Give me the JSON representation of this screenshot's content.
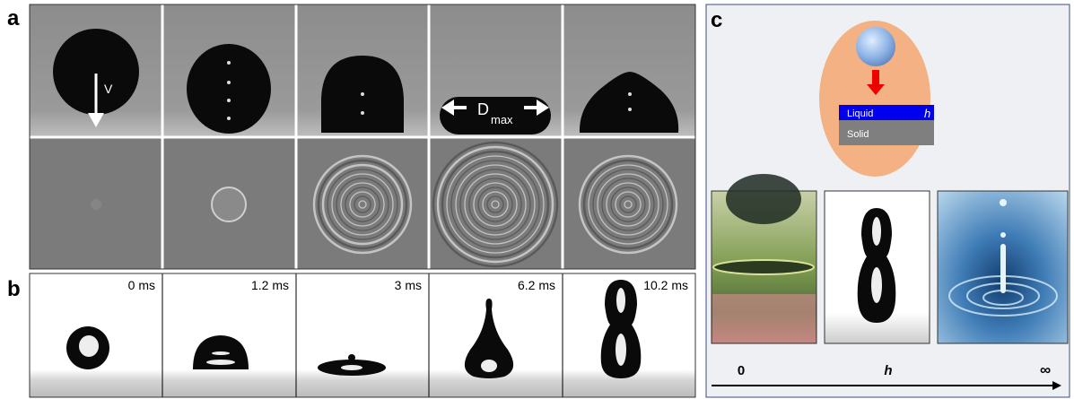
{
  "panels": {
    "a": {
      "label": "a",
      "velocity_label": "V",
      "diameter_label": "D",
      "diameter_subscript": "max"
    },
    "b": {
      "label": "b",
      "times": [
        "0 ms",
        "1.2 ms",
        "3 ms",
        "6.2 ms",
        "10.2 ms"
      ]
    },
    "c": {
      "label": "c",
      "liquid_label": "Liquid",
      "thickness_label": "h",
      "solid_label": "Solid",
      "axis": {
        "start": "0",
        "middle": "h",
        "end": "∞"
      }
    }
  }
}
